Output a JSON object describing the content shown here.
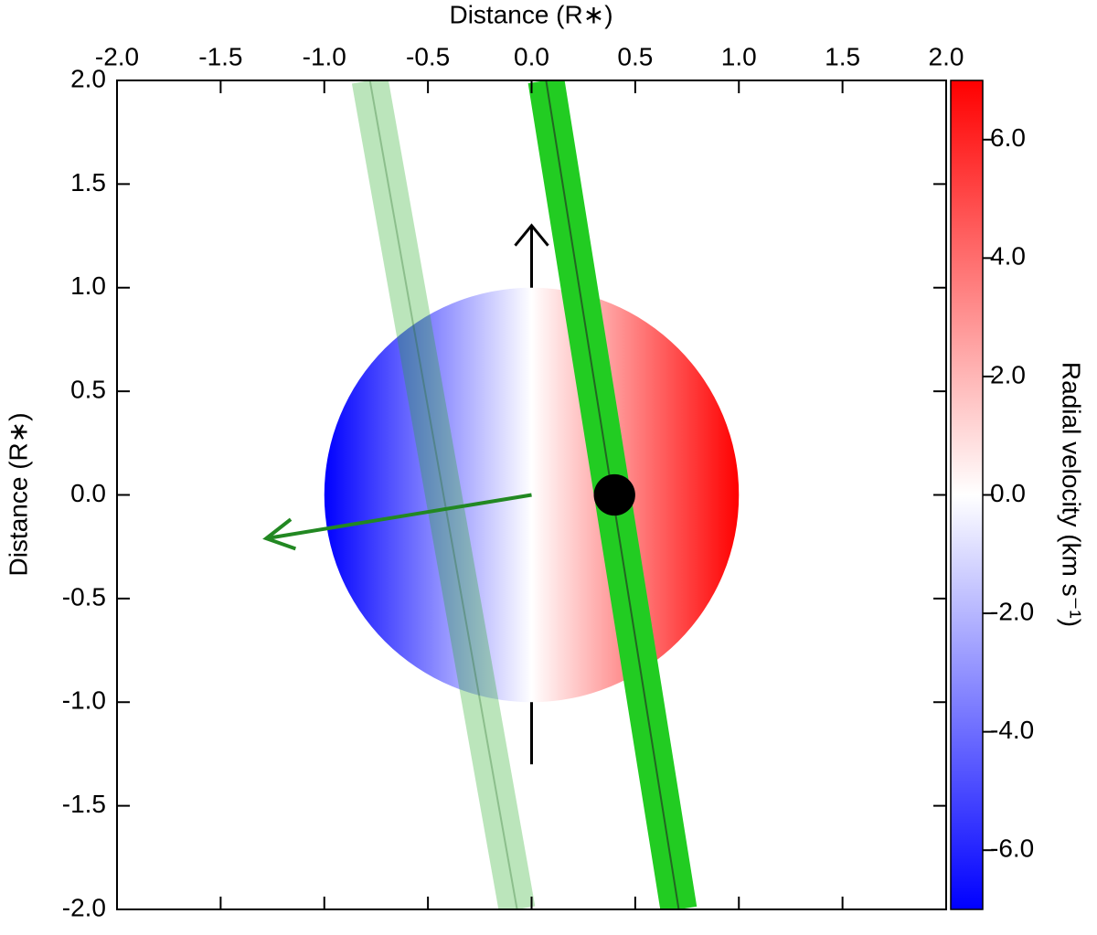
{
  "chart_data": {
    "type": "stellar-disk",
    "x_label": "Distance (R∗)",
    "y_label": "Distance (R∗)",
    "colorbar_label": "Radial velocity (km s⁻¹)",
    "xlim": [
      -2,
      2
    ],
    "ylim": [
      -2,
      2
    ],
    "xticks": [
      {
        "value": -2,
        "label": "-2.0"
      },
      {
        "value": -1.5,
        "label": "-1.5"
      },
      {
        "value": -1,
        "label": "-1.0"
      },
      {
        "value": -0.5,
        "label": "-0.5"
      },
      {
        "value": 0,
        "label": "0.0"
      },
      {
        "value": 0.5,
        "label": "0.5"
      },
      {
        "value": 1,
        "label": "1.0"
      },
      {
        "value": 1.5,
        "label": "1.5"
      },
      {
        "value": 2,
        "label": "2.0"
      }
    ],
    "yticks": [
      {
        "value": -2,
        "label": "-2.0"
      },
      {
        "value": -1.5,
        "label": "-1.5"
      },
      {
        "value": -1,
        "label": "-1.0"
      },
      {
        "value": -0.5,
        "label": "-0.5"
      },
      {
        "value": 0,
        "label": "0.0"
      },
      {
        "value": 0.5,
        "label": "0.5"
      },
      {
        "value": 1,
        "label": "1.0"
      },
      {
        "value": 1.5,
        "label": "1.5"
      },
      {
        "value": 2,
        "label": "2.0"
      }
    ],
    "clim": [
      -7,
      7
    ],
    "cticks": [
      {
        "value": -6,
        "label": "-6.0"
      },
      {
        "value": -4,
        "label": "-4.0"
      },
      {
        "value": -2,
        "label": "-2.0"
      },
      {
        "value": 0,
        "label": "0.0"
      },
      {
        "value": 2,
        "label": "2.0"
      },
      {
        "value": 4,
        "label": "4.0"
      },
      {
        "value": 6,
        "label": "6.0"
      }
    ],
    "colormap": [
      "#0000ff",
      "#ffffff",
      "#ff0000"
    ],
    "star": {
      "x": 0,
      "y": 0,
      "radius": 1
    },
    "planet": {
      "x": 0.4,
      "y": 0,
      "radius": 0.1,
      "color": "#000000"
    },
    "transit_chords": [
      {
        "x": [
          0.07,
          0.71
        ],
        "y": [
          2,
          -2
        ],
        "color": "#22cc22",
        "opacity": 1
      },
      {
        "x": [
          -0.78,
          -0.07
        ],
        "y": [
          2,
          -2
        ],
        "color": "#22aa22",
        "opacity": 0.3
      }
    ],
    "spin_axis": {
      "x": [
        0,
        0
      ],
      "y": [
        -1.3,
        1.3
      ],
      "color": "#000000"
    },
    "orbit_normal": {
      "x": [
        0,
        -1.28
      ],
      "y": [
        0,
        -0.21
      ],
      "color": "#228822"
    }
  }
}
